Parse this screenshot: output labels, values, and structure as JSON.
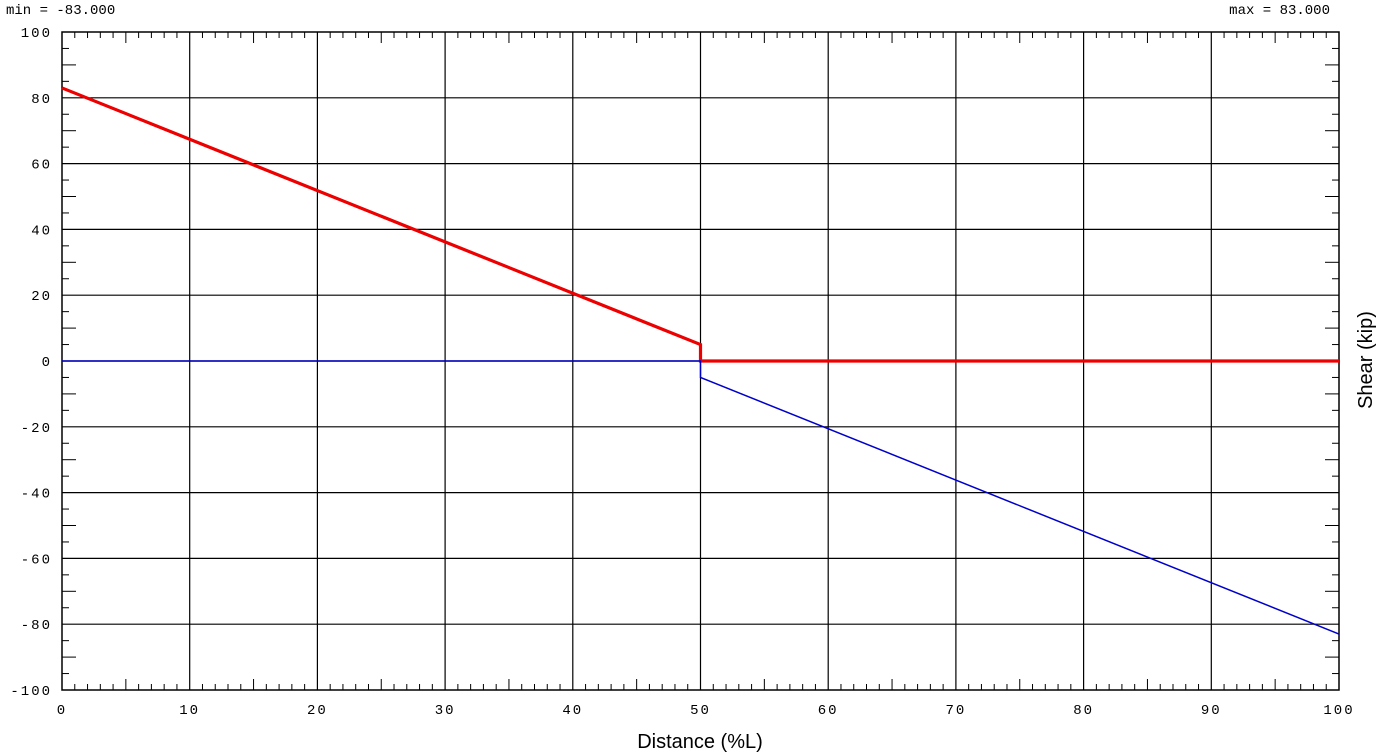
{
  "chart_data": {
    "type": "line",
    "title": "",
    "min_label": "min = -83.000",
    "max_label": "max = 83.000",
    "xlabel": "Distance (%L)",
    "ylabel": "Shear (kip)",
    "xlim": [
      0,
      100
    ],
    "ylim": [
      -100,
      100
    ],
    "x_ticks": [
      "0",
      "10",
      "20",
      "30",
      "40",
      "50",
      "60",
      "70",
      "80",
      "90",
      "100"
    ],
    "y_ticks": [
      "100",
      "80",
      "60",
      "40",
      "20",
      "0",
      "-20",
      "-40",
      "-60",
      "-80",
      "-100"
    ],
    "x_tick_values": [
      0,
      10,
      20,
      30,
      40,
      50,
      60,
      70,
      80,
      90,
      100
    ],
    "y_tick_values": [
      100,
      80,
      60,
      40,
      20,
      0,
      -20,
      -40,
      -60,
      -80,
      -100
    ],
    "grid": true,
    "series": [
      {
        "color": "#ee0000",
        "points": [
          [
            0,
            83
          ],
          [
            50,
            5
          ],
          [
            50,
            0
          ],
          [
            100,
            0
          ]
        ]
      },
      {
        "color": "#0000cc",
        "points": [
          [
            0,
            0
          ],
          [
            50,
            0
          ],
          [
            50,
            -5
          ],
          [
            100,
            -83
          ]
        ]
      }
    ]
  }
}
